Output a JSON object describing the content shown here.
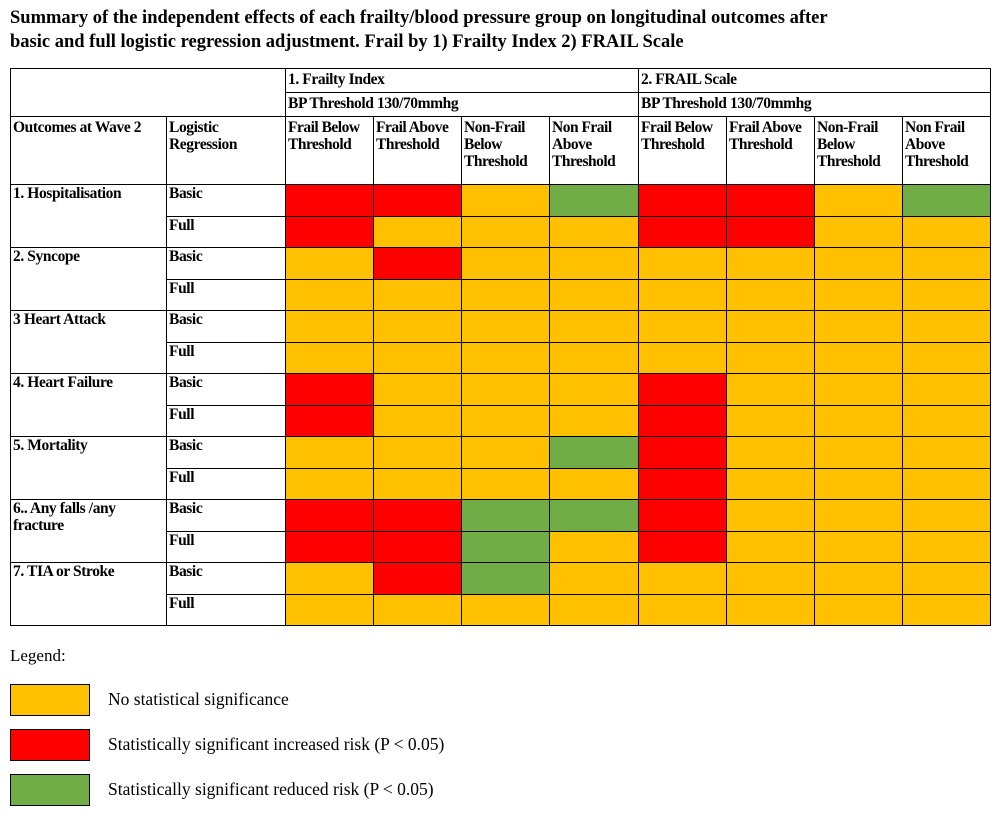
{
  "title": {
    "line1": "Summary of the independent effects of each frailty/blood pressure group on longitudinal outcomes after",
    "line2": "basic and full logistic regression adjustment. Frail by 1) Frailty Index 2) FRAIL Scale"
  },
  "colors": {
    "ns": "#ffc000",
    "inc": "#ff0000",
    "red": "#70ad47"
  },
  "table": {
    "groups": [
      {
        "name": "1. Frailty Index",
        "threshold": "BP Threshold 130/70mmhg"
      },
      {
        "name": "2. FRAIL Scale",
        "threshold": "BP Threshold 130/70mmhg"
      }
    ],
    "outcome_header": "Outcomes at Wave 2",
    "regression_header": "Logistic Regression",
    "columns": [
      "Frail Below Threshold",
      "Frail Above Threshold",
      "Non-Frail Below Threshold",
      "Non Frail Above Threshold",
      "Frail Below Threshold",
      "Frail Above Threshold",
      "Non-Frail Below Threshold",
      "Non Frail Above Threshold"
    ],
    "outcomes": [
      {
        "name": "1. Hospitalisation",
        "rows": [
          {
            "type": "Basic",
            "cells": [
              "inc",
              "inc",
              "ns",
              "red",
              "inc",
              "inc",
              "ns",
              "red"
            ]
          },
          {
            "type": "Full",
            "cells": [
              "inc",
              "ns",
              "ns",
              "ns",
              "inc",
              "inc",
              "ns",
              "ns"
            ]
          }
        ]
      },
      {
        "name": "2. Syncope",
        "rows": [
          {
            "type": "Basic",
            "cells": [
              "ns",
              "inc",
              "ns",
              "ns",
              "ns",
              "ns",
              "ns",
              "ns"
            ]
          },
          {
            "type": "Full",
            "cells": [
              "ns",
              "ns",
              "ns",
              "ns",
              "ns",
              "ns",
              "ns",
              "ns"
            ]
          }
        ]
      },
      {
        "name": "3 Heart Attack",
        "rows": [
          {
            "type": "Basic",
            "cells": [
              "ns",
              "ns",
              "ns",
              "ns",
              "ns",
              "ns",
              "ns",
              "ns"
            ]
          },
          {
            "type": "Full",
            "cells": [
              "ns",
              "ns",
              "ns",
              "ns",
              "ns",
              "ns",
              "ns",
              "ns"
            ]
          }
        ]
      },
      {
        "name": "4. Heart Failure",
        "rows": [
          {
            "type": "Basic",
            "cells": [
              "inc",
              "ns",
              "ns",
              "ns",
              "inc",
              "ns",
              "ns",
              "ns"
            ]
          },
          {
            "type": "Full",
            "cells": [
              "inc",
              "ns",
              "ns",
              "ns",
              "inc",
              "ns",
              "ns",
              "ns"
            ]
          }
        ]
      },
      {
        "name": "5. Mortality",
        "rows": [
          {
            "type": "Basic",
            "cells": [
              "ns",
              "ns",
              "ns",
              "red",
              "inc",
              "ns",
              "ns",
              "ns"
            ]
          },
          {
            "type": "Full",
            "cells": [
              "ns",
              "ns",
              "ns",
              "ns",
              "inc",
              "ns",
              "ns",
              "ns"
            ]
          }
        ]
      },
      {
        "name": "6.. Any falls /any fracture",
        "rows": [
          {
            "type": "Basic",
            "cells": [
              "inc",
              "inc",
              "red",
              "red",
              "inc",
              "ns",
              "ns",
              "ns"
            ]
          },
          {
            "type": "Full",
            "cells": [
              "inc",
              "inc",
              "red",
              "ns",
              "inc",
              "ns",
              "ns",
              "ns"
            ]
          }
        ]
      },
      {
        "name": "7. TIA or Stroke",
        "rows": [
          {
            "type": "Basic",
            "cells": [
              "ns",
              "inc",
              "red",
              "ns",
              "ns",
              "ns",
              "ns",
              "ns"
            ]
          },
          {
            "type": "Full",
            "cells": [
              "ns",
              "ns",
              "ns",
              "ns",
              "ns",
              "ns",
              "ns",
              "ns"
            ]
          }
        ]
      }
    ]
  },
  "legend": {
    "title": "Legend:",
    "items": [
      {
        "key": "ns",
        "label": "No statistical significance"
      },
      {
        "key": "inc",
        "label": "Statistically significant increased risk (P < 0.05)"
      },
      {
        "key": "red",
        "label": "Statistically significant reduced risk (P < 0.05)"
      }
    ]
  }
}
